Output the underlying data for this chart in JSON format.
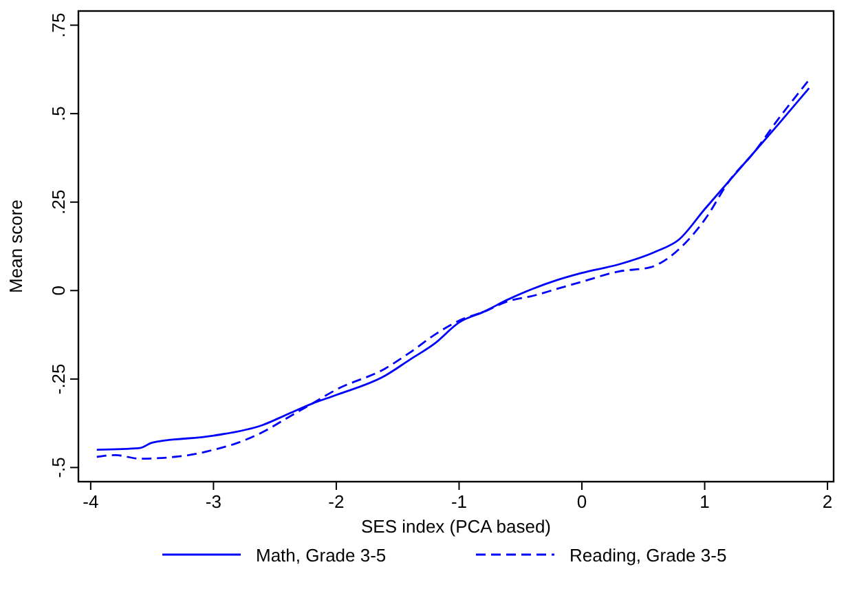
{
  "chart_data": {
    "type": "line",
    "xlabel": "SES index (PCA based)",
    "ylabel": "Mean score",
    "xlim": [
      -4.1,
      2.05
    ],
    "ylim": [
      -0.54,
      0.79
    ],
    "xticks": [
      -4,
      -3,
      -2,
      -1,
      0,
      1,
      2
    ],
    "yticks": [
      {
        "value": -0.5,
        "label": "-.5"
      },
      {
        "value": -0.25,
        "label": "-.25"
      },
      0,
      {
        "value": 0.25,
        "label": ".25"
      },
      {
        "value": 0.5,
        "label": ".5"
      },
      {
        "value": 0.75,
        "label": ".75"
      }
    ],
    "legend": "bottom",
    "grid": false,
    "series": [
      {
        "name": "Math, Grade 3-5",
        "color": "#0000ff",
        "line_style": "solid",
        "x": [
          -3.95,
          -3.6,
          -3.5,
          -3,
          -2.6,
          -2.4,
          -2.2,
          -2,
          -1.6,
          -1.4,
          -1.2,
          -1,
          -0.8,
          -0.6,
          -0.4,
          -0.2,
          0,
          0.3,
          0.6,
          0.79,
          1,
          1.2,
          1.4,
          1.6,
          1.85
        ],
        "values": [
          -0.45,
          -0.445,
          -0.43,
          -0.41,
          -0.38,
          -0.35,
          -0.32,
          -0.295,
          -0.24,
          -0.195,
          -0.15,
          -0.09,
          -0.06,
          -0.025,
          0.005,
          0.03,
          0.05,
          0.074,
          0.11,
          0.144,
          0.23,
          0.31,
          0.39,
          0.47,
          0.572
        ]
      },
      {
        "name": "Reading, Grade 3-5",
        "color": "#0000ff",
        "line_style": "dashed",
        "x": [
          -3.95,
          -3.8,
          -3.6,
          -3.2,
          -3,
          -2.8,
          -2.6,
          -2.4,
          -2.2,
          -2,
          -1.6,
          -1.4,
          -1.2,
          -1,
          -0.8,
          -0.6,
          -0.4,
          -0.2,
          0,
          0.3,
          0.56,
          0.64,
          0.8,
          1,
          1.2,
          1.4,
          1.6,
          1.86
        ],
        "values": [
          -0.47,
          -0.465,
          -0.475,
          -0.465,
          -0.45,
          -0.43,
          -0.4,
          -0.36,
          -0.32,
          -0.28,
          -0.22,
          -0.175,
          -0.125,
          -0.085,
          -0.06,
          -0.03,
          -0.015,
          0.005,
          0.025,
          0.054,
          0.066,
          0.078,
          0.12,
          0.2,
          0.31,
          0.39,
          0.485,
          0.6
        ]
      }
    ]
  }
}
